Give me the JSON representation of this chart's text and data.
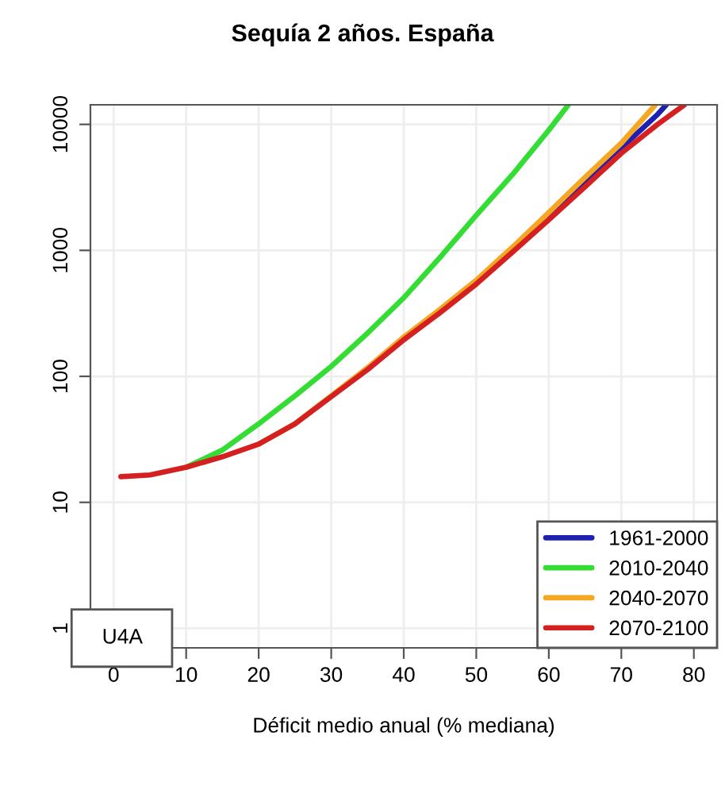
{
  "chart_data": {
    "type": "line",
    "title": "Sequía 2 años. España",
    "xlabel": "Déficit medio anual (% mediana)",
    "log": "y",
    "xlim": [
      -3.2,
      83.2
    ],
    "xticks": [
      0,
      10,
      20,
      30,
      40,
      50,
      60,
      70,
      80
    ],
    "ylim": [
      0.7,
      14300
    ],
    "yticks": [
      1,
      10,
      100,
      1000,
      10000
    ],
    "grid": true,
    "legend": "bottom right",
    "marker": "none",
    "line_style": "solid",
    "annotations": [
      "U4A"
    ],
    "series": [
      {
        "name": "1961-2000",
        "color": "#2020b0",
        "x": [
          60,
          65,
          70,
          75,
          76.2
        ],
        "values": [
          1900,
          3500,
          6500,
          12000,
          14300
        ]
      },
      {
        "name": "2010-2040",
        "color": "#33dd33",
        "x": [
          10,
          15,
          20,
          25,
          30,
          35,
          40,
          45,
          50,
          55,
          60,
          62.7
        ],
        "values": [
          19,
          26,
          42,
          70,
          120,
          220,
          420,
          880,
          1900,
          4000,
          9000,
          14300
        ]
      },
      {
        "name": "2040-2070",
        "color": "#f5a623",
        "x": [
          20,
          25,
          30,
          35,
          40,
          45,
          50,
          55,
          60,
          65,
          70,
          74.7
        ],
        "values": [
          29,
          42,
          70,
          117,
          205,
          340,
          580,
          1060,
          2000,
          3800,
          7100,
          14300
        ]
      },
      {
        "name": "2070-2100",
        "color": "#d42020",
        "x": [
          1,
          5,
          10,
          15,
          20,
          25,
          30,
          35,
          40,
          45,
          50,
          55,
          60,
          65,
          70,
          75,
          78.7
        ],
        "values": [
          16,
          16.5,
          19,
          23,
          29,
          42,
          69,
          113,
          195,
          320,
          540,
          970,
          1750,
          3200,
          5900,
          10000,
          14300
        ]
      }
    ]
  }
}
